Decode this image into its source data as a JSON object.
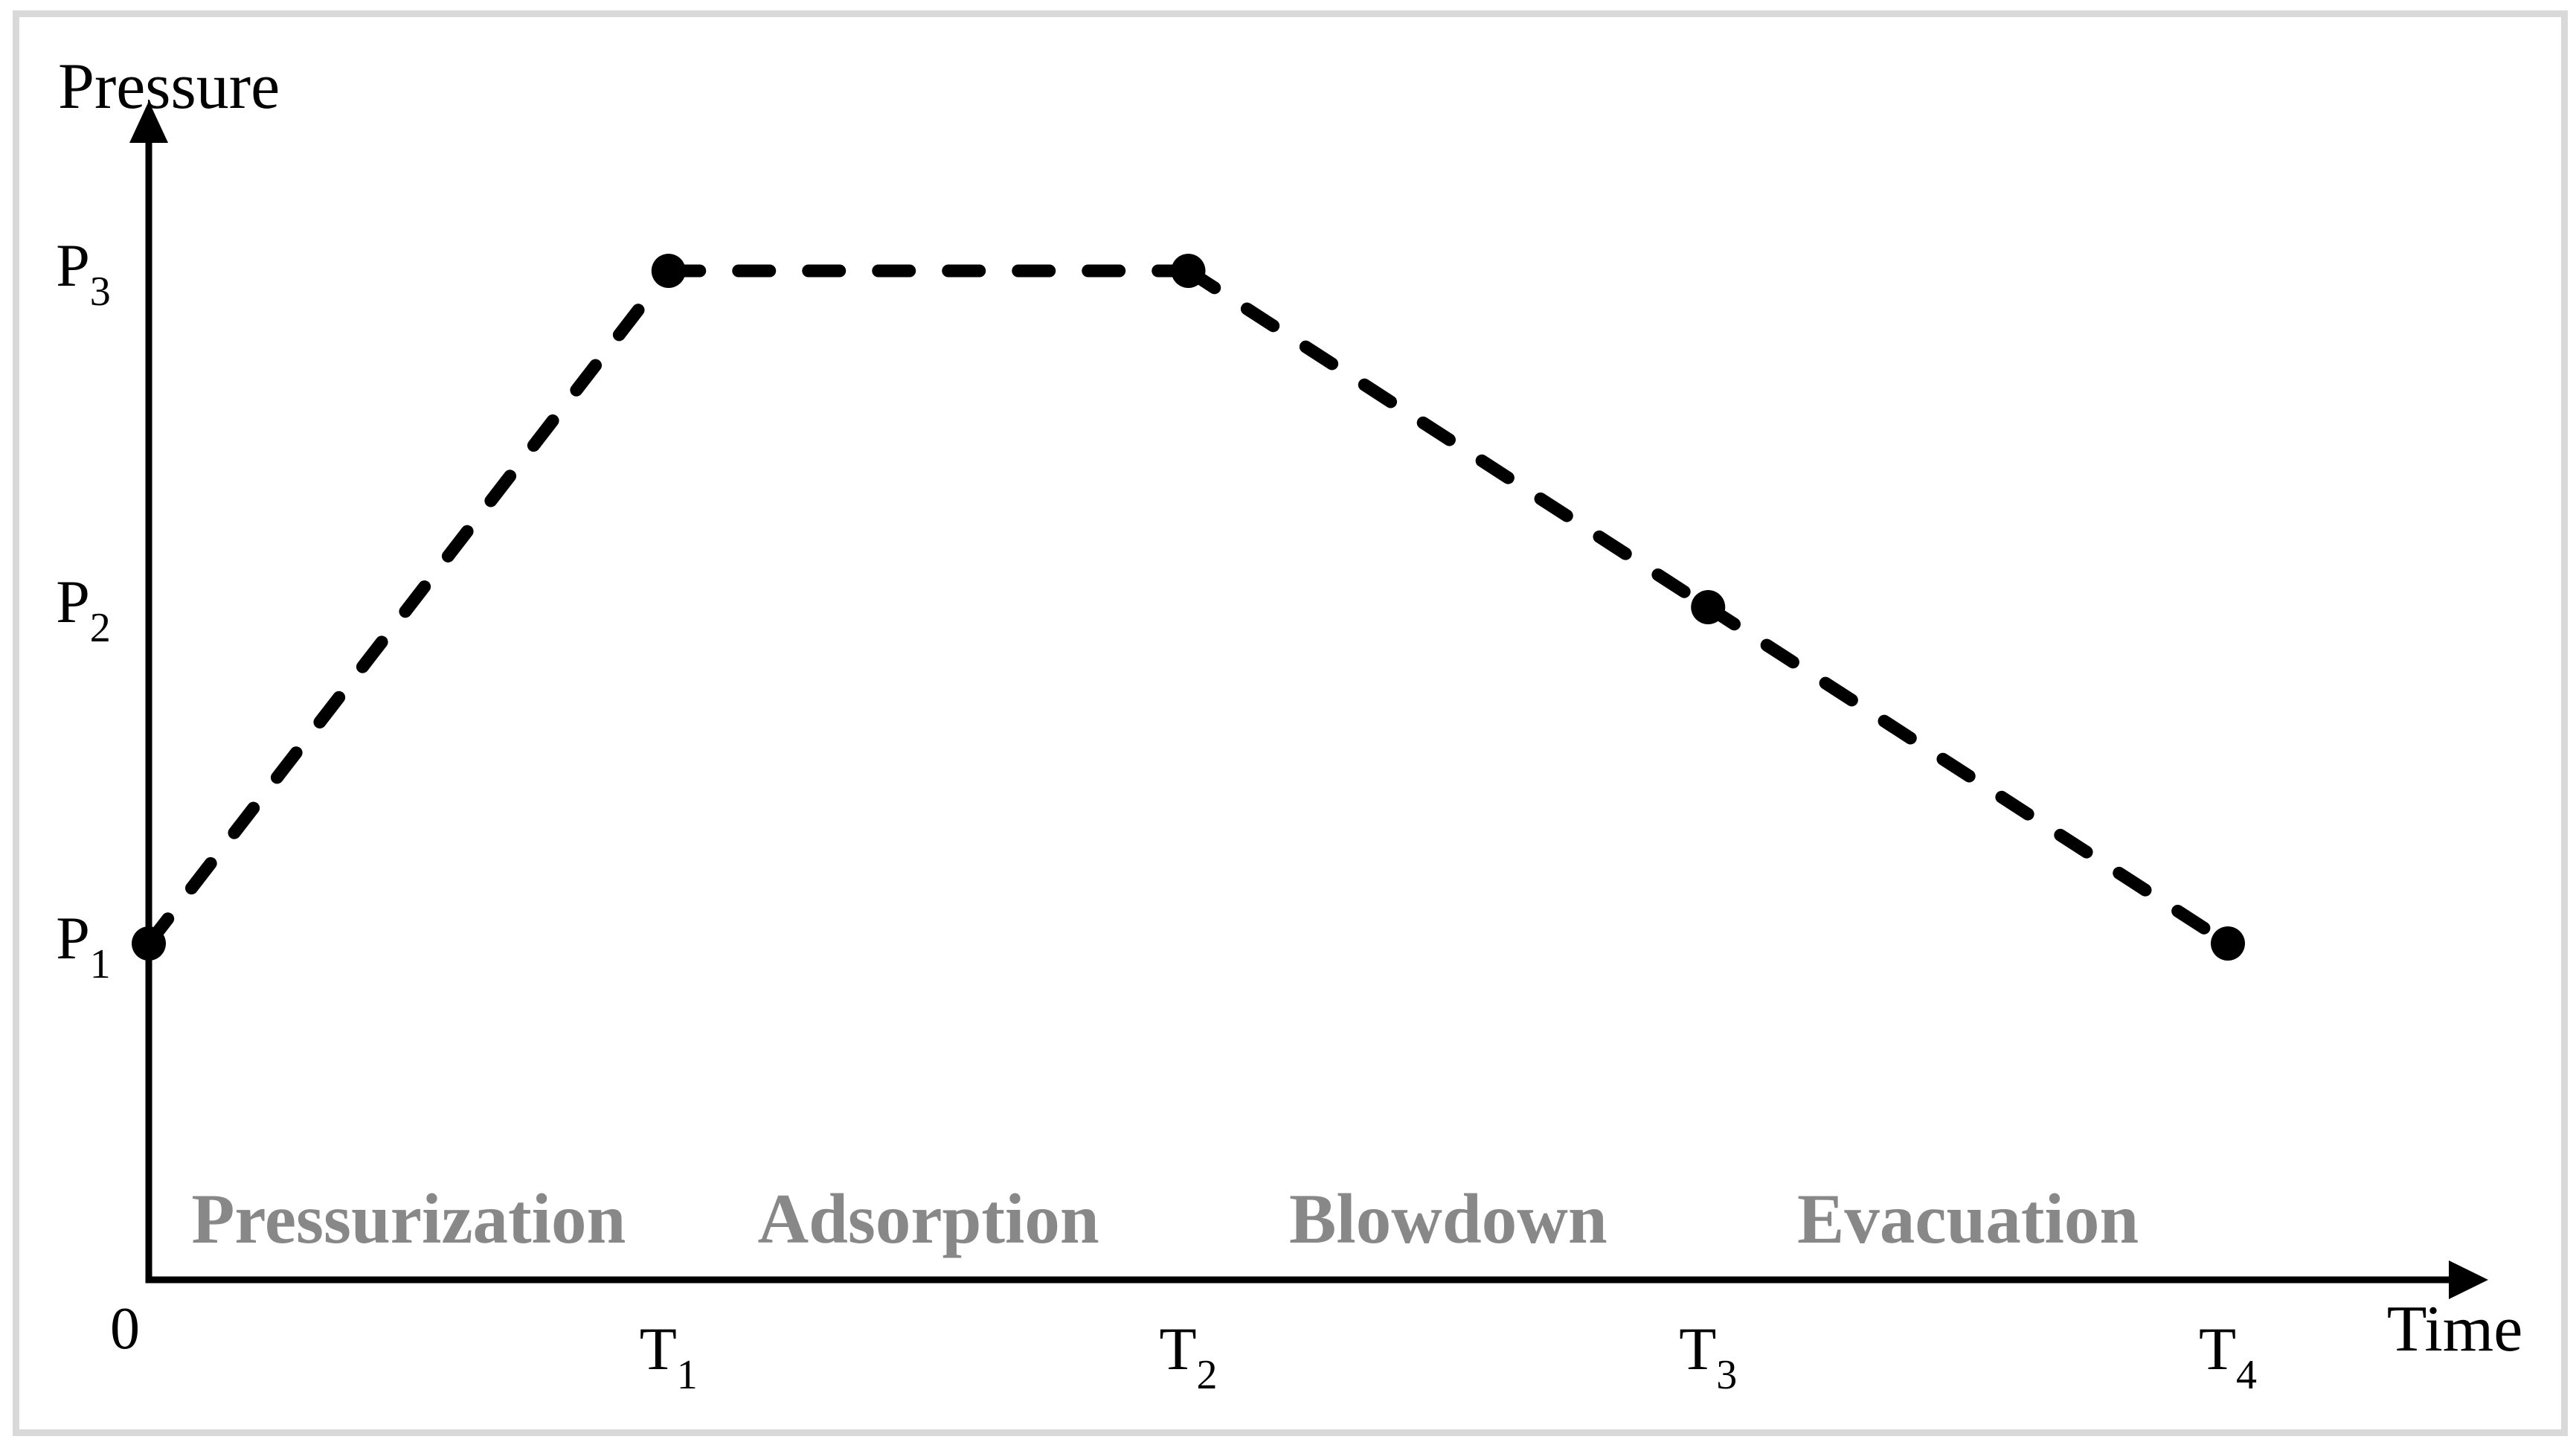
{
  "figure": {
    "background": "#ffffff",
    "frame_color": "#d9d9d9"
  },
  "chart_data": {
    "type": "line",
    "title": "",
    "xlabel": "Time",
    "ylabel": "Pressure",
    "origin_label": "0",
    "line_style": "dashed",
    "marker": "filled-circle",
    "line_color": "#000000",
    "phase_label_color": "#888888",
    "grid": false,
    "legend": false,
    "x_ticks": [
      {
        "main": "T",
        "sub": "1"
      },
      {
        "main": "T",
        "sub": "2"
      },
      {
        "main": "T",
        "sub": "3"
      },
      {
        "main": "T",
        "sub": "4"
      }
    ],
    "y_ticks": [
      {
        "main": "P",
        "sub": "3",
        "level": 3
      },
      {
        "main": "P",
        "sub": "2",
        "level": 2
      },
      {
        "main": "P",
        "sub": "1",
        "level": 1
      }
    ],
    "points": [
      {
        "t": 0,
        "p": 1,
        "time_label": "0",
        "pressure_label": "P1"
      },
      {
        "t": 1,
        "p": 3,
        "time_label": "T1",
        "pressure_label": "P3"
      },
      {
        "t": 2,
        "p": 3,
        "time_label": "T2",
        "pressure_label": "P3"
      },
      {
        "t": 3,
        "p": 2,
        "time_label": "T3",
        "pressure_label": "P2"
      },
      {
        "t": 4,
        "p": 1,
        "time_label": "T4",
        "pressure_label": "P1"
      }
    ],
    "phases": [
      {
        "label": "Pressurization",
        "from_t": 0,
        "to_t": 1
      },
      {
        "label": "Adsorption",
        "from_t": 1,
        "to_t": 2
      },
      {
        "label": "Blowdown",
        "from_t": 2,
        "to_t": 3
      },
      {
        "label": "Evacuation",
        "from_t": 3,
        "to_t": 4
      }
    ],
    "x_axis_tick_sequence": [
      "0",
      "T1",
      "T2",
      "T3",
      "T4"
    ],
    "y_axis_levels": [
      "P1",
      "P2",
      "P3"
    ]
  }
}
